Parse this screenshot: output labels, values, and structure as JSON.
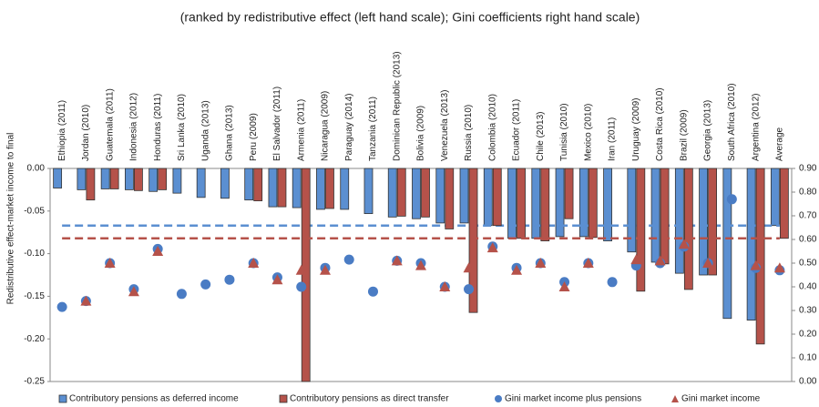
{
  "chart_data": {
    "type": "bar",
    "title": "(ranked by redistributive effect (left hand scale); Gini coefficients right hand scale)",
    "y_label": "Redistributive effect-market income to final",
    "categories": [
      "Ethiopia (2011)",
      "Jordan (2010)",
      "Guatemala (2011)",
      "Indonesia (2012)",
      "Honduras (2011)",
      "Sri Lanka (2010)",
      "Uganda (2013)",
      "Ghana (2013)",
      "Peru (2009)",
      "El Salvador (2011)",
      "Armenia (2011)",
      "Nicaragua (2009)",
      "Paraguay (2014)",
      "Tanzania (2011)",
      "Dominican Republic (2013)",
      "Bolivia (2009)",
      "Venezuela (2013)",
      "Russia (2010)",
      "Colombia (2010)",
      "Ecuador (2011)",
      "Chile (2013)",
      "Tunisia (2010)",
      "Mexico (2010)",
      "Iran (2011)",
      "Uruguay (2009)",
      "Costa Rica (2010)",
      "Brazil (2009)",
      "Georgia (2013)",
      "South Africa (2010)",
      "Argentina (2012)",
      "Average"
    ],
    "series": [
      {
        "name": "Contributory pensions as deferred income",
        "type": "bar",
        "color": "#5b8fd1",
        "average_line": true,
        "values": [
          -0.023,
          -0.025,
          -0.024,
          -0.025,
          -0.027,
          -0.029,
          -0.034,
          -0.035,
          -0.037,
          -0.045,
          -0.046,
          -0.048,
          -0.048,
          -0.053,
          -0.057,
          -0.059,
          -0.064,
          -0.064,
          -0.067,
          -0.082,
          -0.082,
          -0.08,
          -0.08,
          -0.085,
          -0.098,
          -0.11,
          -0.123,
          -0.125,
          -0.176,
          -0.178,
          -0.067
        ]
      },
      {
        "name": "Contributory pensions as direct transfer",
        "type": "bar",
        "color": "#b5524a",
        "average_line": true,
        "values": [
          null,
          -0.037,
          -0.024,
          -0.026,
          -0.025,
          null,
          null,
          null,
          -0.038,
          -0.045,
          -0.25,
          -0.047,
          null,
          null,
          -0.056,
          -0.057,
          -0.071,
          -0.169,
          -0.067,
          -0.082,
          -0.085,
          -0.059,
          -0.081,
          null,
          -0.144,
          -0.112,
          -0.142,
          -0.125,
          null,
          -0.206,
          -0.082
        ]
      },
      {
        "name": "Gini market income plus pensions",
        "type": "scatter",
        "marker": "circle",
        "axis": "y2",
        "color": "#4a7cc4",
        "values": [
          0.315,
          0.34,
          0.5,
          0.39,
          0.56,
          0.37,
          0.41,
          0.43,
          0.5,
          0.44,
          0.4,
          0.48,
          0.515,
          0.38,
          0.51,
          0.5,
          0.4,
          0.39,
          0.57,
          0.48,
          0.5,
          0.42,
          0.5,
          0.42,
          0.49,
          0.5,
          0.57,
          0.5,
          0.77,
          0.48,
          0.47
        ]
      },
      {
        "name": "Gini market income",
        "type": "scatter",
        "marker": "triangle",
        "axis": "y2",
        "color": "#b5524a",
        "values": [
          null,
          0.34,
          0.5,
          0.38,
          0.55,
          null,
          null,
          null,
          0.5,
          0.43,
          0.47,
          0.47,
          null,
          null,
          0.51,
          0.49,
          0.4,
          0.48,
          0.565,
          0.47,
          0.5,
          0.4,
          0.5,
          null,
          0.515,
          0.51,
          0.58,
          0.5,
          null,
          0.49,
          0.48
        ]
      }
    ],
    "ylim": [
      -0.25,
      0
    ],
    "yticks": [
      {
        "value": 0,
        "label": "0.00"
      },
      {
        "value": -0.05,
        "label": "-0.05"
      },
      {
        "value": -0.1,
        "label": "-0.10"
      },
      {
        "value": -0.15,
        "label": "-0.15"
      },
      {
        "value": -0.2,
        "label": "-0.20"
      },
      {
        "value": -0.25,
        "label": "-0.25"
      }
    ],
    "y2lim": [
      0,
      0.9
    ],
    "y2ticks": [
      {
        "value": 0.9,
        "label": "0.90"
      },
      {
        "value": 0.8,
        "label": "0.80"
      },
      {
        "value": 0.7,
        "label": "0.70"
      },
      {
        "value": 0.6,
        "label": "0.60"
      },
      {
        "value": 0.5,
        "label": "0.50"
      },
      {
        "value": 0.4,
        "label": "0.40"
      },
      {
        "value": 0.3,
        "label": "0.30"
      },
      {
        "value": 0.2,
        "label": "0.20"
      },
      {
        "value": 0.1,
        "label": "0.10"
      },
      {
        "value": 0,
        "label": "0.00"
      }
    ],
    "legend": "bottom"
  }
}
